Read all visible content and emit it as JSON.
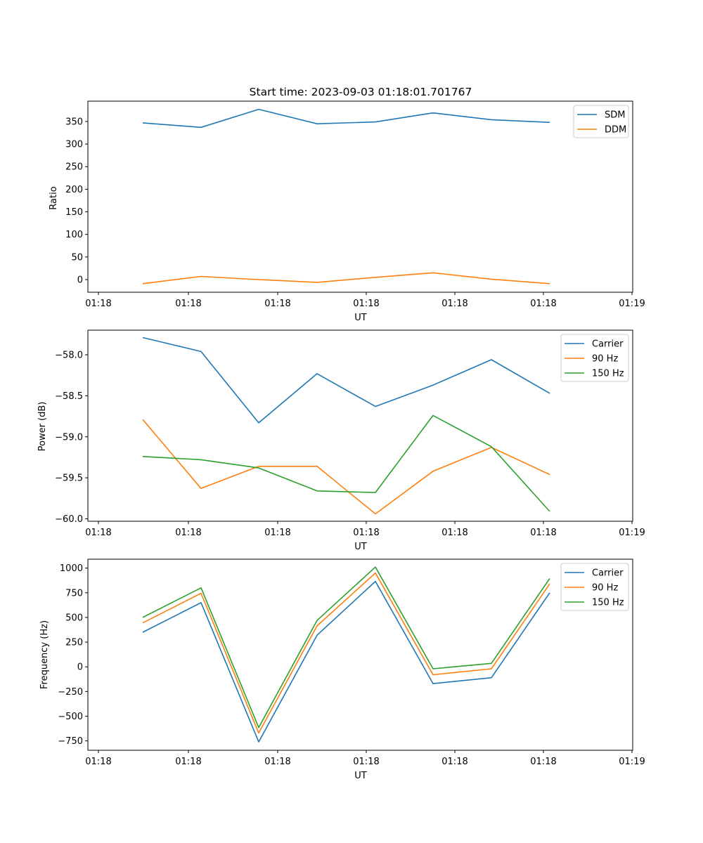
{
  "colors": {
    "blue": "#1f77b4",
    "orange": "#ff7f0e",
    "green": "#2ca02c"
  },
  "chart_data": [
    {
      "type": "line",
      "title": "Start time: 2023-09-03 01:18:01.701767",
      "xlabel": "UT",
      "ylabel": "Ratio",
      "x_tick_labels": [
        "01:18",
        "01:18",
        "01:18",
        "01:18",
        "01:18",
        "01:18",
        "01:18",
        "01:19"
      ],
      "y_ticks": [
        0,
        50,
        100,
        150,
        200,
        250,
        300,
        350
      ],
      "y_tick_labels": [
        "0",
        "50",
        "100",
        "150",
        "200",
        "250",
        "300",
        "350"
      ],
      "ylim": [
        -28,
        395
      ],
      "legend_position": "top-right",
      "series": [
        {
          "name": "SDM",
          "color": "#1f77b4",
          "values": [
            347,
            337,
            377,
            345,
            349,
            369,
            354,
            348
          ]
        },
        {
          "name": "DDM",
          "color": "#ff7f0e",
          "values": [
            -9,
            7,
            0,
            -6,
            5,
            15,
            1,
            -9
          ]
        }
      ]
    },
    {
      "type": "line",
      "title": "",
      "xlabel": "UT",
      "ylabel": "Power (dB)",
      "x_tick_labels": [
        "01:18",
        "01:18",
        "01:18",
        "01:18",
        "01:18",
        "01:18",
        "01:18",
        "01:19"
      ],
      "y_ticks": [
        -60.0,
        -59.5,
        -59.0,
        -58.5,
        -58.0
      ],
      "y_tick_labels": [
        "−60.0",
        "−59.5",
        "−59.0",
        "−58.5",
        "−58.0"
      ],
      "ylim": [
        -60.03,
        -57.7
      ],
      "legend_position": "top-right",
      "series": [
        {
          "name": "Carrier",
          "color": "#1f77b4",
          "values": [
            -57.79,
            -57.96,
            -58.83,
            -58.23,
            -58.63,
            -58.37,
            -58.06,
            -58.47
          ]
        },
        {
          "name": "90 Hz",
          "color": "#ff7f0e",
          "values": [
            -58.79,
            -59.63,
            -59.36,
            -59.36,
            -59.94,
            -59.42,
            -59.13,
            -59.46
          ]
        },
        {
          "name": "150 Hz",
          "color": "#2ca02c",
          "values": [
            -59.24,
            -59.28,
            -59.38,
            -59.66,
            -59.68,
            -58.74,
            -59.12,
            -59.91
          ]
        }
      ]
    },
    {
      "type": "line",
      "title": "",
      "xlabel": "UT",
      "ylabel": "Frequency (Hz)",
      "x_tick_labels": [
        "01:18",
        "01:18",
        "01:18",
        "01:18",
        "01:18",
        "01:18",
        "01:18",
        "01:19"
      ],
      "y_ticks": [
        -750,
        -500,
        -250,
        0,
        250,
        500,
        750,
        1000
      ],
      "y_tick_labels": [
        "−750",
        "−500",
        "−250",
        "0",
        "250",
        "500",
        "750",
        "1000"
      ],
      "ylim": [
        -845,
        1090
      ],
      "legend_position": "top-right",
      "series": [
        {
          "name": "Carrier",
          "color": "#1f77b4",
          "values": [
            350,
            650,
            -760,
            320,
            865,
            -170,
            -110,
            750
          ]
        },
        {
          "name": "90 Hz",
          "color": "#ff7f0e",
          "values": [
            445,
            745,
            -670,
            415,
            950,
            -80,
            -20,
            840
          ]
        },
        {
          "name": "150 Hz",
          "color": "#2ca02c",
          "values": [
            500,
            800,
            -615,
            470,
            1010,
            -20,
            35,
            895
          ]
        }
      ]
    }
  ]
}
